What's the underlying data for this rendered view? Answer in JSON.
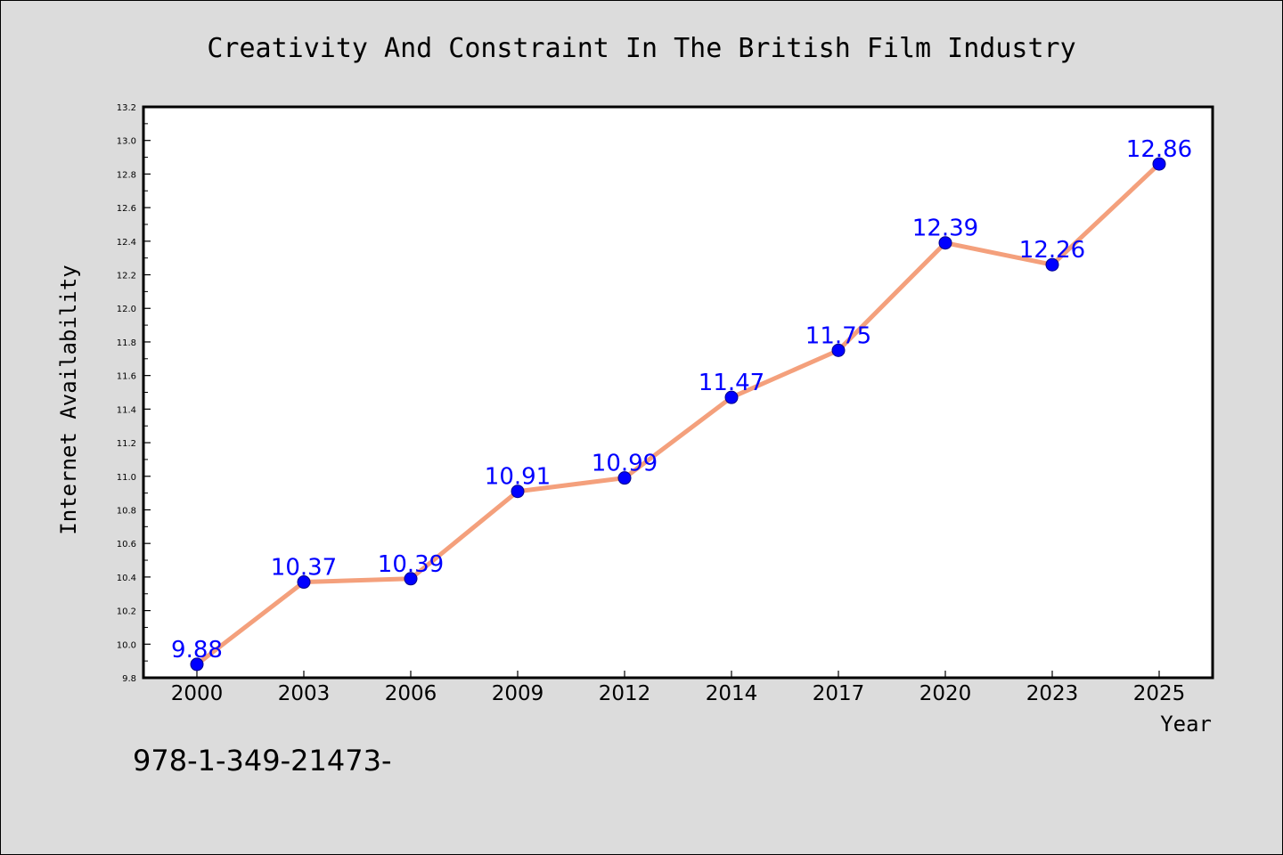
{
  "chart_data": {
    "type": "line",
    "title": "Creativity And Constraint In The British Film Industry",
    "xlabel": "Year",
    "ylabel": "Internet Availability",
    "categories": [
      "2000",
      "2003",
      "2006",
      "2009",
      "2012",
      "2014",
      "2017",
      "2020",
      "2023",
      "2025"
    ],
    "series": [
      {
        "values": [
          9.88,
          10.37,
          10.39,
          10.91,
          10.99,
          11.47,
          11.75,
          12.39,
          12.26,
          12.86
        ],
        "labels": [
          "9.88",
          "10.37",
          "10.39",
          "10.91",
          "10.99",
          "11.47",
          "11.75",
          "12.39",
          "12.26",
          "12.86"
        ]
      }
    ],
    "ylim": [
      9.8,
      13.2
    ],
    "yticks": [
      "9.8",
      "10.0",
      "10.2",
      "10.4",
      "10.6",
      "10.8",
      "11.0",
      "11.2",
      "11.4",
      "11.6",
      "11.8",
      "12.0",
      "12.2",
      "12.4",
      "12.6",
      "12.8",
      "13.0",
      "13.2"
    ],
    "grid": false,
    "line_color": "#f4a07c",
    "marker_color": "#0000ff",
    "label_color": "#0000ff",
    "plot_background": "#ffffff",
    "page_background": "#dcdcdc"
  },
  "footer": {
    "isbn": "978-1-349-21473-"
  }
}
